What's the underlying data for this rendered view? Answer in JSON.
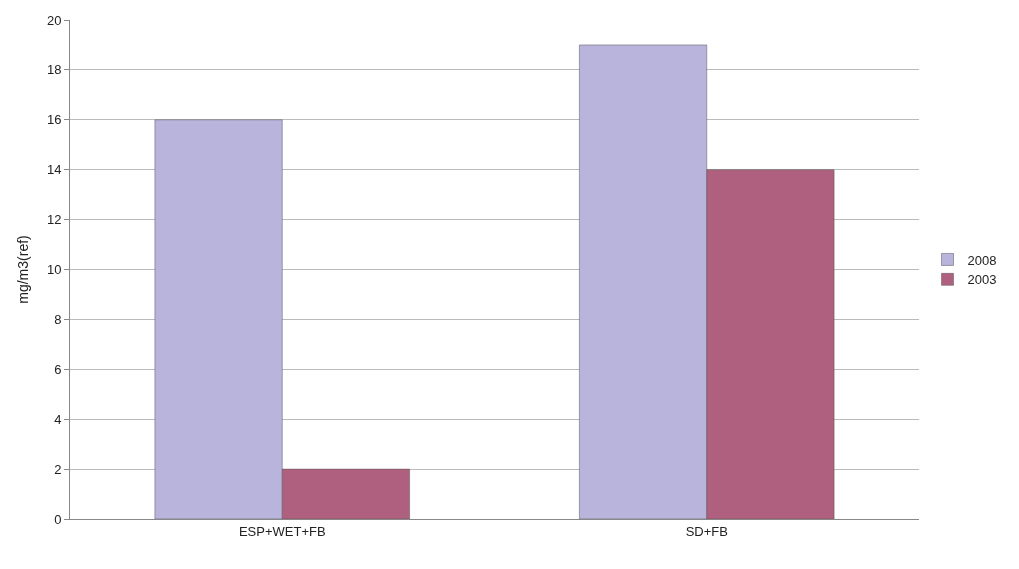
{
  "chart_data": {
    "type": "bar",
    "ylabel": "mg/m3(ref)",
    "categories": [
      "ESP+WET+FB",
      "SD+FB"
    ],
    "series": [
      {
        "name": "2008",
        "color": "#b8b4dc",
        "values": [
          16,
          19
        ]
      },
      {
        "name": "2003",
        "color": "#b0607f",
        "values": [
          2,
          14
        ]
      }
    ],
    "ylim": [
      0,
      20
    ],
    "yticks": [
      0,
      2,
      4,
      6,
      8,
      10,
      12,
      14,
      16,
      18,
      20
    ],
    "grid": "y",
    "legend": "right"
  }
}
